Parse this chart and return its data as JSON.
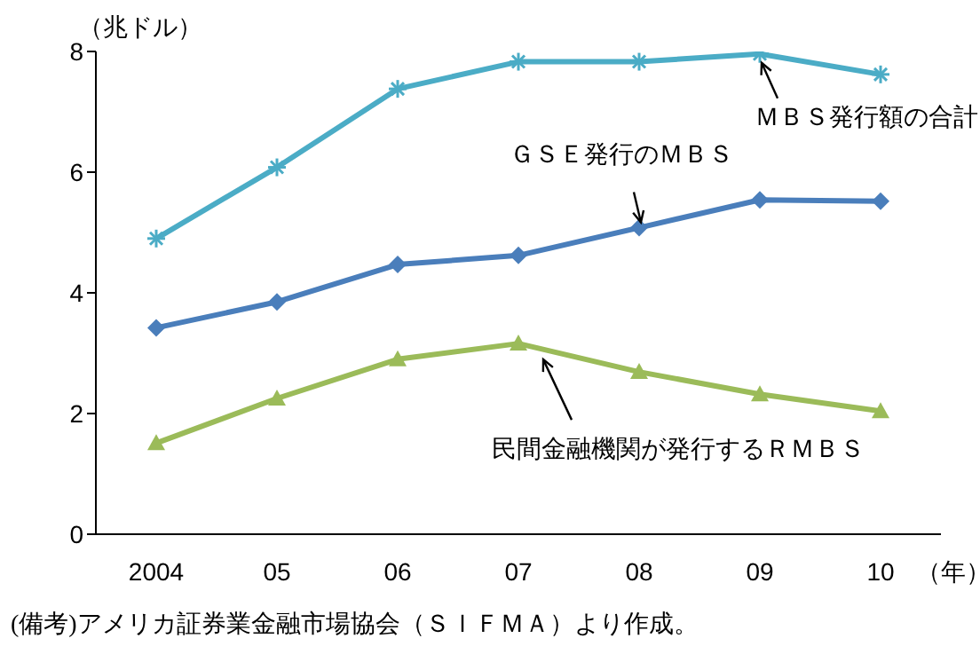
{
  "chart_data": {
    "type": "line",
    "ylabel": "（兆ドル）",
    "xlabel": "（年）",
    "categories": [
      "2004",
      "05",
      "06",
      "07",
      "08",
      "09",
      "10"
    ],
    "series": [
      {
        "name": "ＭＢＳ発行額の合計",
        "color": "#4bacc6",
        "marker": "cross",
        "values": [
          4.9,
          6.08,
          7.38,
          7.83,
          7.83,
          7.96,
          7.62
        ]
      },
      {
        "name": "ＧＳＥ発行のＭＢＳ",
        "color": "#4a7ebb",
        "marker": "diamond",
        "values": [
          3.42,
          3.85,
          4.47,
          4.62,
          5.08,
          5.54,
          5.52
        ]
      },
      {
        "name": "民間金融機関が発行するＲＭＢＳ",
        "color": "#9bbb59",
        "marker": "triangle",
        "values": [
          1.51,
          2.25,
          2.9,
          3.16,
          2.69,
          2.32,
          2.04
        ]
      }
    ],
    "ylim": [
      0,
      8
    ],
    "yticks": [
      0,
      2,
      4,
      6,
      8
    ],
    "grid": false,
    "legend": false,
    "annotations": [
      "(備考)アメリカ証券業金融市場協会（ＳＩＦＭＡ）より作成。"
    ]
  }
}
